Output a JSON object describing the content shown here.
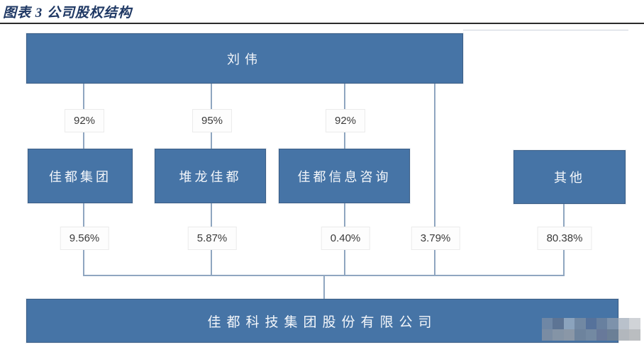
{
  "figure": {
    "caption": "图表 3 公司股权结构",
    "caption_color": "#1f3864",
    "rule_color": "#2b2b2b"
  },
  "chart": {
    "type": "org-equity-structure",
    "top_node": {
      "label": "刘伟"
    },
    "mid_nodes": [
      {
        "label": "佳都集团",
        "stake_from_top": "92%",
        "stake_in_bottom": "9.56%"
      },
      {
        "label": "堆龙佳都",
        "stake_from_top": "95%",
        "stake_in_bottom": "5.87%"
      },
      {
        "label": "佳都信息咨询",
        "stake_from_top": "92%",
        "stake_in_bottom": "0.40%"
      }
    ],
    "top_direct_stake_in_bottom": "3.79%",
    "others_node": {
      "label": "其他",
      "stake_in_bottom": "80.38%"
    },
    "bottom_node": {
      "label": "佳都科技集团股份有限公司"
    }
  },
  "colors": {
    "node_fill": "#4674a6",
    "node_border": "#3b5e86",
    "node_text": "#f4f7fb",
    "connector": "#8fa6c0",
    "percent_text": "#3a3a3a",
    "percent_bg": "#fdfdfd"
  },
  "watermark": {
    "blocks": [
      "#6f87a5",
      "#5d7494",
      "#8ba3bd",
      "#7188a3",
      "#56729b",
      "#68809f",
      "#7d92ab",
      "#b9c1cb",
      "#d0d3d7",
      "#7a8ca3",
      "#8494a6",
      "#8a97a7",
      "#6d839d",
      "#7389a2",
      "#68799a",
      "#6b7f96",
      "#b2b7bd",
      "#babdc0"
    ]
  }
}
